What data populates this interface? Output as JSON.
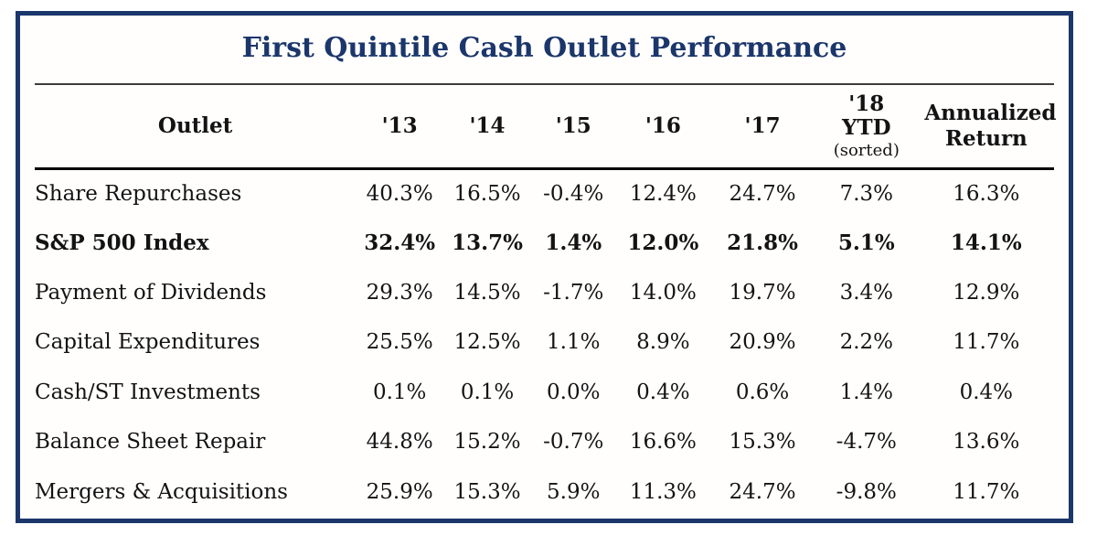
{
  "title": "First Quintile Cash Outlet Performance",
  "colors": {
    "navy": "#1b366b",
    "text": "#131313",
    "thin_rule": "#3d3d3d",
    "thick_rule": "#000000"
  },
  "chart_data": {
    "type": "table",
    "title": "First Quintile Cash Outlet Performance",
    "columns": [
      "Outlet",
      "'13",
      "'14",
      "'15",
      "'16",
      "'17",
      "'18 YTD",
      "Annualized Return"
    ],
    "ytd_note": "(sorted)",
    "rows": [
      {
        "outlet": "Share Repurchases",
        "emphasis": false,
        "values": [
          "40.3%",
          "16.5%",
          "-0.4%",
          "12.4%",
          "24.7%",
          "7.3%",
          "16.3%"
        ]
      },
      {
        "outlet": "S&P 500 Index",
        "emphasis": true,
        "values": [
          "32.4%",
          "13.7%",
          "1.4%",
          "12.0%",
          "21.8%",
          "5.1%",
          "14.1%"
        ]
      },
      {
        "outlet": "Payment of Dividends",
        "emphasis": false,
        "values": [
          "29.3%",
          "14.5%",
          "-1.7%",
          "14.0%",
          "19.7%",
          "3.4%",
          "12.9%"
        ]
      },
      {
        "outlet": "Capital Expenditures",
        "emphasis": false,
        "values": [
          "25.5%",
          "12.5%",
          "1.1%",
          "8.9%",
          "20.9%",
          "2.2%",
          "11.7%"
        ]
      },
      {
        "outlet": "Cash/ST Investments",
        "emphasis": false,
        "values": [
          "0.1%",
          "0.1%",
          "0.0%",
          "0.4%",
          "0.6%",
          "1.4%",
          "0.4%"
        ]
      },
      {
        "outlet": "Balance Sheet Repair",
        "emphasis": false,
        "values": [
          "44.8%",
          "15.2%",
          "-0.7%",
          "16.6%",
          "15.3%",
          "-4.7%",
          "13.6%"
        ]
      },
      {
        "outlet": "Mergers & Acquisitions",
        "emphasis": false,
        "values": [
          "25.9%",
          "15.3%",
          "5.9%",
          "11.3%",
          "24.7%",
          "-9.8%",
          "11.7%"
        ]
      }
    ]
  }
}
